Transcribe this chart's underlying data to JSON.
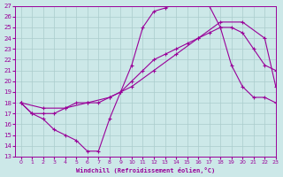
{
  "xlabel": "Windchill (Refroidissement éolien,°C)",
  "bg_color": "#cce8e8",
  "line_color": "#990099",
  "grid_color": "#aacccc",
  "xlim": [
    -0.5,
    23
  ],
  "ylim": [
    13,
    27
  ],
  "xticks": [
    0,
    1,
    2,
    3,
    4,
    5,
    6,
    7,
    8,
    9,
    10,
    11,
    12,
    13,
    14,
    15,
    16,
    17,
    18,
    19,
    20,
    21,
    22,
    23
  ],
  "yticks": [
    13,
    14,
    15,
    16,
    17,
    18,
    19,
    20,
    21,
    22,
    23,
    24,
    25,
    26,
    27
  ],
  "curve1_x": [
    0,
    1,
    2,
    3,
    4,
    5,
    6,
    7,
    8,
    9,
    10,
    11,
    12,
    13,
    14,
    15,
    16,
    17,
    18,
    19,
    20,
    21,
    22,
    23
  ],
  "curve1_y": [
    18,
    17,
    16.5,
    15.5,
    15,
    14.5,
    13.5,
    13.5,
    16.5,
    19,
    21.5,
    25,
    26.5,
    26.8,
    27.2,
    27.2,
    27.1,
    27,
    25,
    21.5,
    19.5,
    18.5,
    18.5,
    18
  ],
  "curve2_x": [
    0,
    1,
    2,
    3,
    4,
    5,
    6,
    7,
    8,
    9,
    10,
    11,
    12,
    13,
    14,
    15,
    16,
    17,
    18,
    19,
    20,
    21,
    22,
    23
  ],
  "curve2_y": [
    18,
    17,
    17,
    17,
    17.5,
    18,
    18,
    18,
    18.5,
    19,
    20,
    21,
    22,
    22.5,
    23,
    23.5,
    24,
    24.5,
    25,
    25,
    24.5,
    23,
    21.5,
    21
  ],
  "curve3_x": [
    0,
    2,
    4,
    6,
    8,
    10,
    12,
    14,
    16,
    18,
    20,
    22,
    23
  ],
  "curve3_y": [
    18,
    17.5,
    17.5,
    18,
    18.5,
    19.5,
    21,
    22.5,
    24,
    25.5,
    25.5,
    24,
    19.5
  ]
}
